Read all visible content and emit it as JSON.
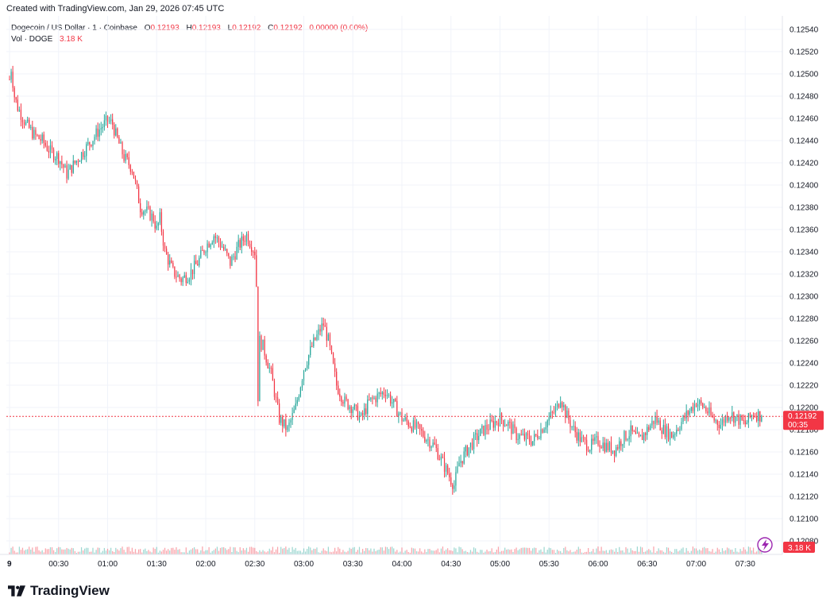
{
  "header": {
    "created": "Created with TradingView.com, Jan 29, 2026 07:45 UTC"
  },
  "legend": {
    "symbol": "Dogecoin / US Dollar · 1 · Coinbase",
    "o_label": "O",
    "o_value": "0.12193",
    "h_label": "H",
    "h_value": "0.12193",
    "l_label": "L",
    "l_value": "0.12192",
    "c_label": "C",
    "c_value": "0.12192",
    "change": "0.00000 (0.00%)",
    "vol_label": "Vol · DOGE",
    "vol_value": "3.18 K"
  },
  "price_tag": {
    "price": "0.12192",
    "countdown": "00:35"
  },
  "volume_tag": {
    "value": "3.18 K"
  },
  "brand": {
    "name": "TradingView"
  },
  "colors": {
    "up": "#26a69a",
    "down": "#f23645",
    "grid": "#f0f3fa",
    "text": "#131722"
  },
  "chart_data": {
    "type": "candlestick",
    "title": "Dogecoin / US Dollar · 1 · Coinbase",
    "y_ticks": [
      "0.12540",
      "0.12520",
      "0.12500",
      "0.12480",
      "0.12460",
      "0.12440",
      "0.12420",
      "0.12400",
      "0.12380",
      "0.12360",
      "0.12340",
      "0.12320",
      "0.12300",
      "0.12280",
      "0.12260",
      "0.12240",
      "0.12220",
      "0.12200",
      "0.12180",
      "0.12160",
      "0.12140",
      "0.12120",
      "0.12100",
      "0.12080"
    ],
    "ylim": [
      0.1208,
      0.1254
    ],
    "x_ticks": [
      "9",
      "00:30",
      "01:00",
      "01:30",
      "02:00",
      "02:30",
      "03:00",
      "03:30",
      "04:00",
      "04:30",
      "05:00",
      "05:30",
      "06:00",
      "06:30",
      "07:00",
      "07:30"
    ],
    "x_tick_minutes": [
      0,
      30,
      60,
      90,
      120,
      150,
      180,
      210,
      240,
      270,
      300,
      330,
      360,
      390,
      420,
      450
    ],
    "current_price": 0.12192,
    "price_path_minutes": [
      0,
      1,
      3,
      5,
      10,
      15,
      20,
      25,
      30,
      35,
      40,
      45,
      50,
      55,
      60,
      63,
      65,
      70,
      75,
      80,
      85,
      88,
      90,
      92,
      95,
      100,
      105,
      110,
      115,
      120,
      125,
      130,
      135,
      140,
      145,
      150,
      151,
      152,
      153,
      155,
      160,
      165,
      170,
      175,
      180,
      185,
      190,
      192,
      195,
      200,
      205,
      210,
      215,
      220,
      230,
      240,
      250,
      260,
      270,
      272,
      275,
      280,
      285,
      290,
      300,
      305,
      310,
      320,
      325,
      330,
      335,
      337,
      340,
      345,
      350,
      355,
      360,
      365,
      370,
      375,
      380,
      385,
      390,
      395,
      400,
      405,
      410,
      415,
      420,
      425,
      430,
      435,
      440,
      445,
      450,
      455,
      460
    ],
    "price_path": [
      0.12495,
      0.12505,
      0.1248,
      0.1247,
      0.12455,
      0.12445,
      0.1244,
      0.1243,
      0.12425,
      0.1241,
      0.1242,
      0.1243,
      0.1244,
      0.1245,
      0.12458,
      0.12455,
      0.12445,
      0.12425,
      0.12415,
      0.1238,
      0.12375,
      0.1237,
      0.1236,
      0.1237,
      0.1234,
      0.12322,
      0.12315,
      0.1232,
      0.1233,
      0.12345,
      0.12355,
      0.12345,
      0.1233,
      0.12345,
      0.12355,
      0.1234,
      0.1231,
      0.1221,
      0.1226,
      0.12255,
      0.1223,
      0.1219,
      0.1218,
      0.122,
      0.12235,
      0.12255,
      0.1227,
      0.12275,
      0.1226,
      0.1222,
      0.12205,
      0.122,
      0.1219,
      0.12205,
      0.12215,
      0.1219,
      0.1218,
      0.12165,
      0.12135,
      0.1213,
      0.1215,
      0.12162,
      0.12172,
      0.1218,
      0.1219,
      0.12185,
      0.12175,
      0.1217,
      0.1218,
      0.1219,
      0.122,
      0.1221,
      0.12195,
      0.1218,
      0.1217,
      0.12165,
      0.1217,
      0.12165,
      0.12162,
      0.12172,
      0.12178,
      0.1217,
      0.1218,
      0.1219,
      0.1218,
      0.12175,
      0.12185,
      0.12195,
      0.12205,
      0.122,
      0.1219,
      0.12185,
      0.12195,
      0.1219,
      0.12185,
      0.12195,
      0.12192
    ]
  }
}
